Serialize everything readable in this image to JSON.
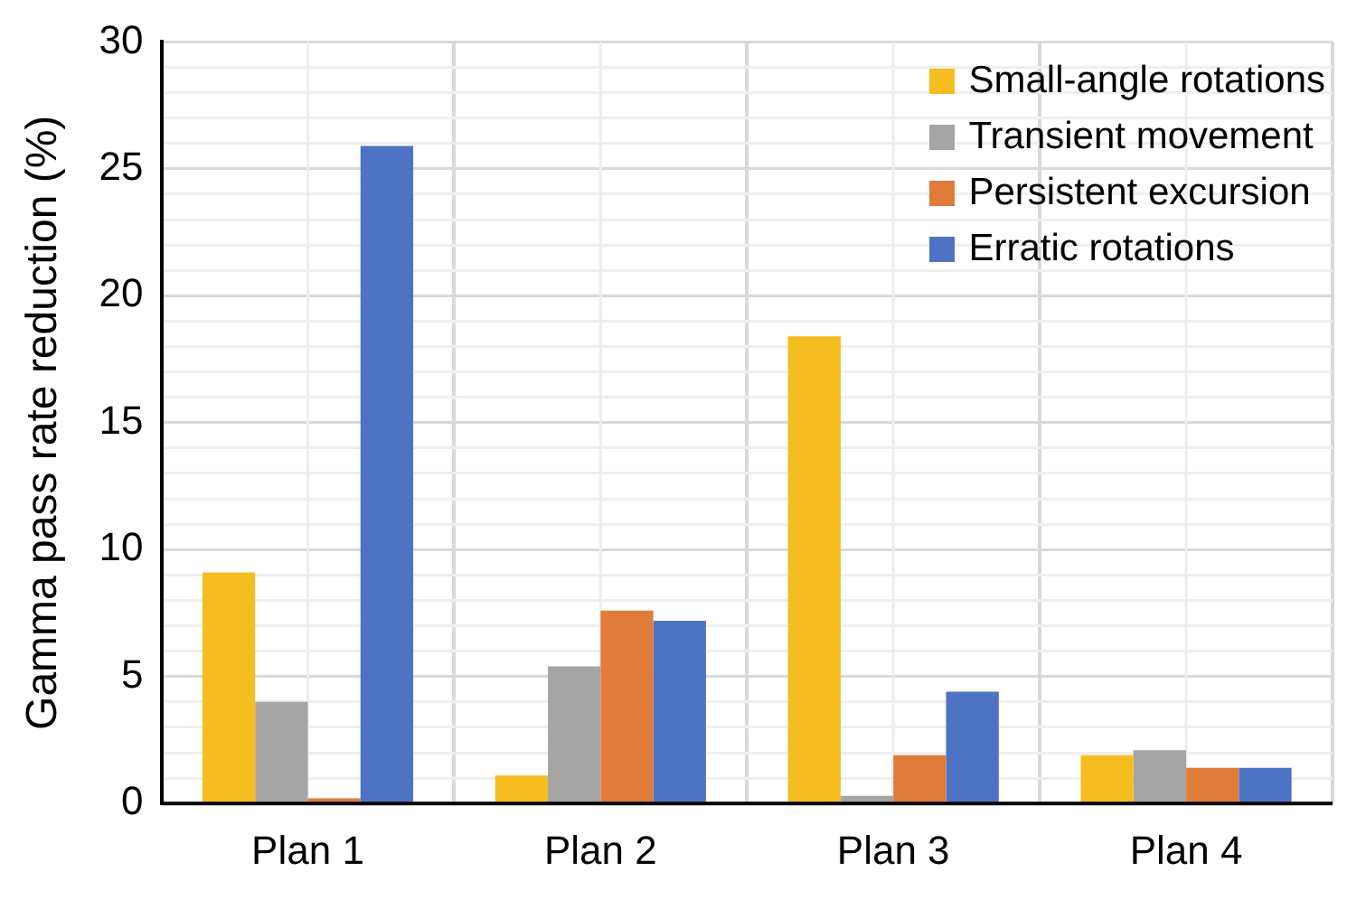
{
  "chart_data": {
    "type": "bar",
    "ylabel": "Gamma pass rate reduction (%)",
    "categories": [
      "Plan 1",
      "Plan 2",
      "Plan 3",
      "Plan 4"
    ],
    "series": [
      {
        "name": "Small-angle rotations",
        "color": "#f5bd1f",
        "values": [
          9.1,
          1.1,
          18.4,
          1.9
        ]
      },
      {
        "name": "Transient movement",
        "color": "#a5a5a5",
        "values": [
          4.0,
          5.4,
          0.3,
          2.1
        ]
      },
      {
        "name": "Persistent excursion",
        "color": "#e07b39",
        "values": [
          0.2,
          7.6,
          1.9,
          1.4
        ]
      },
      {
        "name": "Erratic rotations",
        "color": "#4f73c4",
        "values": [
          25.9,
          7.2,
          4.4,
          1.4
        ]
      }
    ],
    "ylim": [
      0,
      30
    ],
    "yticks": [
      0,
      {
        "value": 1,
        "label": null
      },
      {
        "value": 2,
        "label": null
      },
      {
        "value": 3,
        "label": null
      },
      {
        "value": 4,
        "label": null
      },
      5,
      {
        "value": 6,
        "label": null
      },
      {
        "value": 7,
        "label": null
      },
      {
        "value": 8,
        "label": null
      },
      {
        "value": 9,
        "label": null
      },
      10,
      {
        "value": 11,
        "label": null
      },
      {
        "value": 12,
        "label": null
      },
      {
        "value": 13,
        "label": null
      },
      {
        "value": 14,
        "label": null
      },
      15,
      {
        "value": 16,
        "label": null
      },
      {
        "value": 17,
        "label": null
      },
      {
        "value": 18,
        "label": null
      },
      {
        "value": 19,
        "label": null
      },
      20,
      {
        "value": 21,
        "label": null
      },
      {
        "value": 22,
        "label": null
      },
      {
        "value": 23,
        "label": null
      },
      {
        "value": 24,
        "label": null
      },
      25,
      {
        "value": 26,
        "label": null
      },
      {
        "value": 27,
        "label": null
      },
      {
        "value": 28,
        "label": null
      },
      {
        "value": 29,
        "label": null
      },
      30
    ],
    "grid": true,
    "legend": "top right"
  }
}
